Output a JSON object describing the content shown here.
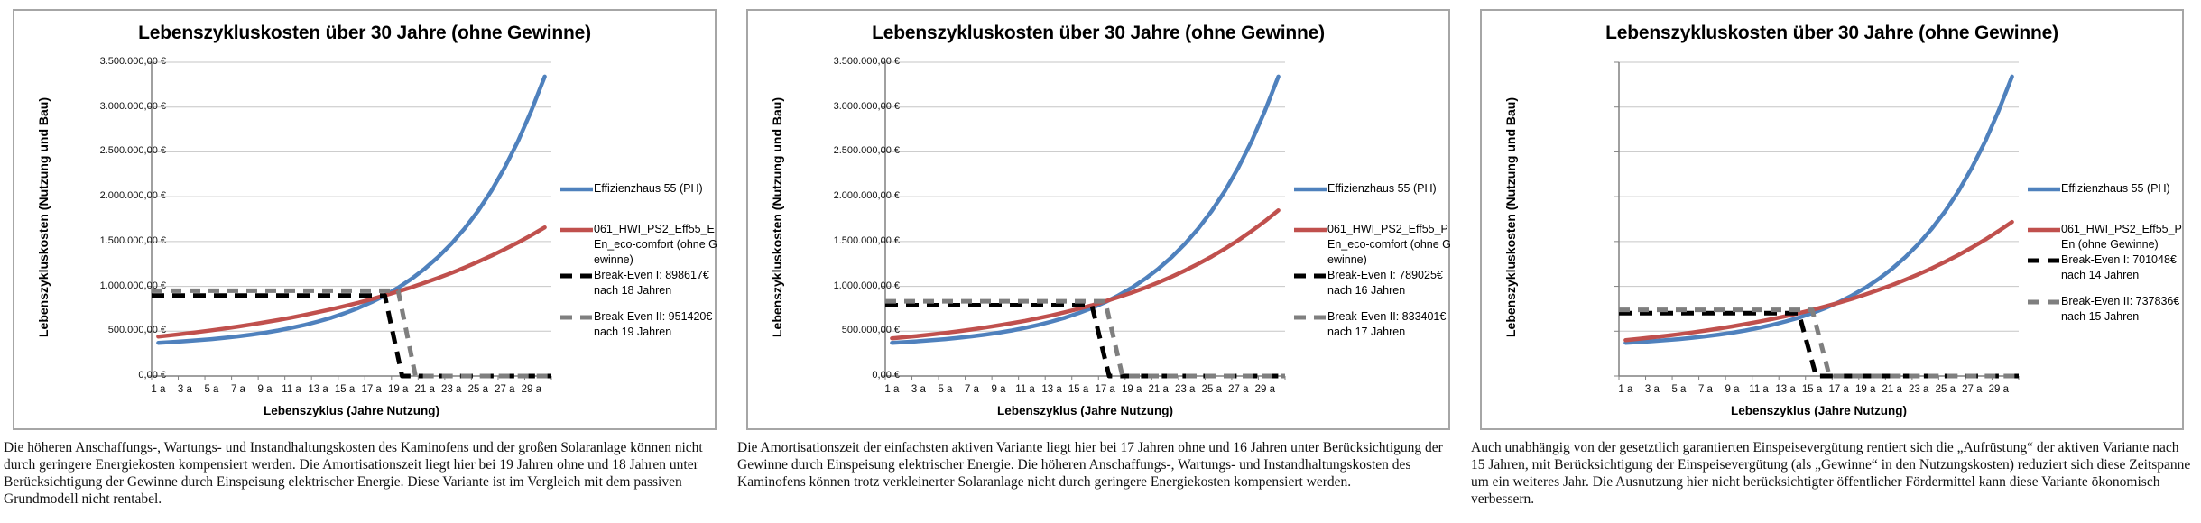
{
  "page": {
    "background": "#ffffff"
  },
  "chart_data": [
    {
      "type": "line",
      "title": "Lebenszykluskosten über 30 Jahre (ohne Gewinne)",
      "ylabel": "Lebenszykluskosten (Nutzung und Bau)",
      "xlabel": "Lebenszyklus (Jahre Nutzung)",
      "ylim": [
        0,
        3500000
      ],
      "grid": true,
      "legend_position": "right",
      "y_tick_labels": [
        "3.500.000,00 €",
        "3.000.000,00 €",
        "2.500.000,00 €",
        "2.000.000,00 €",
        "1.500.000,00 €",
        "1.000.000,00 €",
        "500.000,00 €",
        "0,00 €"
      ],
      "x_tick_labels": [
        "1 a",
        "3 a",
        "5 a",
        "7 a",
        "9 a",
        "11 a",
        "13 a",
        "15 a",
        "17 a",
        "19 a",
        "21 a",
        "23 a",
        "25 a",
        "27 a",
        "29 a"
      ],
      "x": [
        1,
        2,
        3,
        4,
        5,
        6,
        7,
        8,
        9,
        10,
        11,
        12,
        13,
        14,
        15,
        16,
        17,
        18,
        19,
        20,
        21,
        22,
        23,
        24,
        25,
        26,
        27,
        28,
        29,
        30
      ],
      "series": [
        {
          "name": "Effizienzhaus 55 (PH)",
          "color": "#4F81BD",
          "style": "solid",
          "values": [
            370000,
            378000,
            388000,
            399000,
            411000,
            426000,
            443000,
            462000,
            483000,
            508000,
            537000,
            570000,
            608000,
            651000,
            701000,
            758000,
            824000,
            899000,
            985000,
            1083000,
            1197000,
            1327000,
            1476000,
            1646000,
            1842000,
            2067000,
            2325000,
            2621000,
            2960000,
            3340000
          ]
        },
        {
          "name": "061_HWI_PS2_Eff55_EEn_eco-comfort (ohne Gewinne)",
          "color": "#C0504D",
          "style": "solid",
          "values": [
            440000,
            456000,
            473000,
            491000,
            510000,
            530000,
            552000,
            575000,
            599000,
            625000,
            652000,
            682000,
            713000,
            745000,
            780000,
            817000,
            857000,
            899000,
            943000,
            990000,
            1041000,
            1094000,
            1150000,
            1210000,
            1274000,
            1342000,
            1414000,
            1490000,
            1571000,
            1657000
          ]
        },
        {
          "name": "Break-Even I: 898617€ nach 18 Jahren",
          "color": "#000000",
          "style": "dashed",
          "break_even": {
            "value": 898617,
            "year": 18
          }
        },
        {
          "name": "Break-Even II: 951420€ nach 19 Jahren",
          "color": "#7F7F7F",
          "style": "dashed",
          "break_even": {
            "value": 951420,
            "year": 19
          }
        }
      ],
      "caption": "Die höheren Anschaffungs-, Wartungs- und Instandhaltungskosten des Kaminofens und der großen Solaranlage können nicht durch geringere Energiekosten kompensiert werden. Die Amortisationszeit liegt hier bei 19 Jahren ohne und 18 Jahren unter Berücksichtigung der Gewinne durch Einspeisung elektrischer Energie. Diese Variante ist im Vergleich mit dem passiven Grundmodell nicht rentabel."
    },
    {
      "type": "line",
      "title": "Lebenszykluskosten über 30 Jahre (ohne Gewinne)",
      "ylabel": "Lebenszykluskosten (Nutzung und Bau)",
      "xlabel": "Lebenszyklus (Jahre Nutzung)",
      "ylim": [
        0,
        3500000
      ],
      "grid": true,
      "legend_position": "right",
      "y_tick_labels": [
        "3.500.000,00 €",
        "3.000.000,00 €",
        "2.500.000,00 €",
        "2.000.000,00 €",
        "1.500.000,00 €",
        "1.000.000,00 €",
        "500.000,00 €",
        "0,00 €"
      ],
      "x_tick_labels": [
        "1 a",
        "3 a",
        "5 a",
        "7 a",
        "9 a",
        "11 a",
        "13 a",
        "15 a",
        "17 a",
        "19 a",
        "21 a",
        "23 a",
        "25 a",
        "27 a",
        "29 a"
      ],
      "x": [
        1,
        2,
        3,
        4,
        5,
        6,
        7,
        8,
        9,
        10,
        11,
        12,
        13,
        14,
        15,
        16,
        17,
        18,
        19,
        20,
        21,
        22,
        23,
        24,
        25,
        26,
        27,
        28,
        29,
        30
      ],
      "series": [
        {
          "name": "Effizienzhaus 55 (PH)",
          "color": "#4F81BD",
          "style": "solid",
          "values": [
            370000,
            378000,
            388000,
            399000,
            411000,
            426000,
            443000,
            462000,
            483000,
            508000,
            537000,
            570000,
            608000,
            651000,
            701000,
            758000,
            824000,
            899000,
            985000,
            1083000,
            1197000,
            1327000,
            1476000,
            1646000,
            1842000,
            2067000,
            2325000,
            2621000,
            2960000,
            3340000
          ]
        },
        {
          "name": "061_HWI_PS2_Eff55_PEn_eco-comfort (ohne Gewinne)",
          "color": "#C0504D",
          "style": "solid",
          "values": [
            420000,
            433000,
            448000,
            464000,
            481000,
            499000,
            519000,
            541000,
            564000,
            589000,
            616000,
            646000,
            677000,
            712000,
            749000,
            789000,
            833000,
            880000,
            930000,
            985000,
            1044000,
            1108000,
            1178000,
            1252000,
            1333000,
            1421000,
            1515000,
            1618000,
            1728000,
            1848000
          ]
        },
        {
          "name": "Break-Even I: 789025€ nach 16 Jahren",
          "color": "#000000",
          "style": "dashed",
          "break_even": {
            "value": 789025,
            "year": 16
          }
        },
        {
          "name": "Break-Even II: 833401€ nach 17 Jahren",
          "color": "#7F7F7F",
          "style": "dashed",
          "break_even": {
            "value": 833401,
            "year": 17
          }
        }
      ],
      "caption": "Die Amortisationszeit der einfachsten aktiven Variante liegt hier bei 17 Jahren ohne und 16 Jahren unter Berücksichtigung der Gewinne durch Einspeisung elektrischer Energie. Die höheren Anschaffungs-, Wartungs- und Instandhaltungskosten des Kaminofens können trotz verkleinerter Solaranlage nicht durch geringere Energiekosten kompensiert werden."
    },
    {
      "type": "line",
      "title": "Lebenszykluskosten über 30 Jahre (ohne Gewinne)",
      "ylabel": "Lebenszykluskosten (Nutzung und Bau)",
      "xlabel": "Lebenszyklus (Jahre Nutzung)",
      "ylim": [
        0,
        3500000
      ],
      "grid": true,
      "legend_position": "right",
      "y_tick_labels": [
        "3.500.000,00 €",
        "3.000.000,00 €",
        "2.500.000,00 €",
        "2.000.000,00 €",
        "1.500.000,00 €",
        "1.000.000,00 €",
        "500.000,00 €",
        "0,00 €"
      ],
      "x_tick_labels": [
        "1 a",
        "3 a",
        "5 a",
        "7 a",
        "9 a",
        "11 a",
        "13 a",
        "15 a",
        "17 a",
        "19 a",
        "21 a",
        "23 a",
        "25 a",
        "27 a",
        "29 a"
      ],
      "x": [
        1,
        2,
        3,
        4,
        5,
        6,
        7,
        8,
        9,
        10,
        11,
        12,
        13,
        14,
        15,
        16,
        17,
        18,
        19,
        20,
        21,
        22,
        23,
        24,
        25,
        26,
        27,
        28,
        29,
        30
      ],
      "series": [
        {
          "name": "Effizienzhaus 55 (PH)",
          "color": "#4F81BD",
          "style": "solid",
          "values": [
            370000,
            378000,
            388000,
            399000,
            411000,
            426000,
            443000,
            462000,
            483000,
            508000,
            537000,
            570000,
            608000,
            651000,
            701000,
            758000,
            824000,
            899000,
            985000,
            1083000,
            1197000,
            1327000,
            1476000,
            1646000,
            1842000,
            2067000,
            2325000,
            2621000,
            2960000,
            3340000
          ]
        },
        {
          "name": "061_HWI_PS2_Eff55_PEn (ohne Gewinne)",
          "color": "#C0504D",
          "style": "solid",
          "values": [
            400000,
            415000,
            431000,
            448000,
            466000,
            486000,
            507000,
            529000,
            553000,
            579000,
            606000,
            636000,
            667000,
            701000,
            737000,
            776000,
            818000,
            862000,
            910000,
            961000,
            1015000,
            1074000,
            1136000,
            1203000,
            1275000,
            1352000,
            1434000,
            1523000,
            1617000,
            1719000
          ]
        },
        {
          "name": "Break-Even I: 701048€ nach 14 Jahren",
          "color": "#000000",
          "style": "dashed",
          "break_even": {
            "value": 701048,
            "year": 14
          }
        },
        {
          "name": "Break-Even II: 737836€ nach 15 Jahren",
          "color": "#7F7F7F",
          "style": "dashed",
          "break_even": {
            "value": 737836,
            "year": 15
          }
        }
      ],
      "caption": "Auch unabhängig von der gesetztlich garantierten Einspeisevergütung rentiert sich die „Aufrüstung“ der aktiven Variante nach 15 Jahren, mit Berücksichtigung der Einspeisevergütung (als „Gewinne“ in den Nutzungskosten) reduziert sich diese Zeitspanne um ein weiteres Jahr. Die Ausnutzung hier nicht berücksichtigter öffentlicher Fördermittel kann diese Variante ökonomisch verbessern."
    }
  ]
}
